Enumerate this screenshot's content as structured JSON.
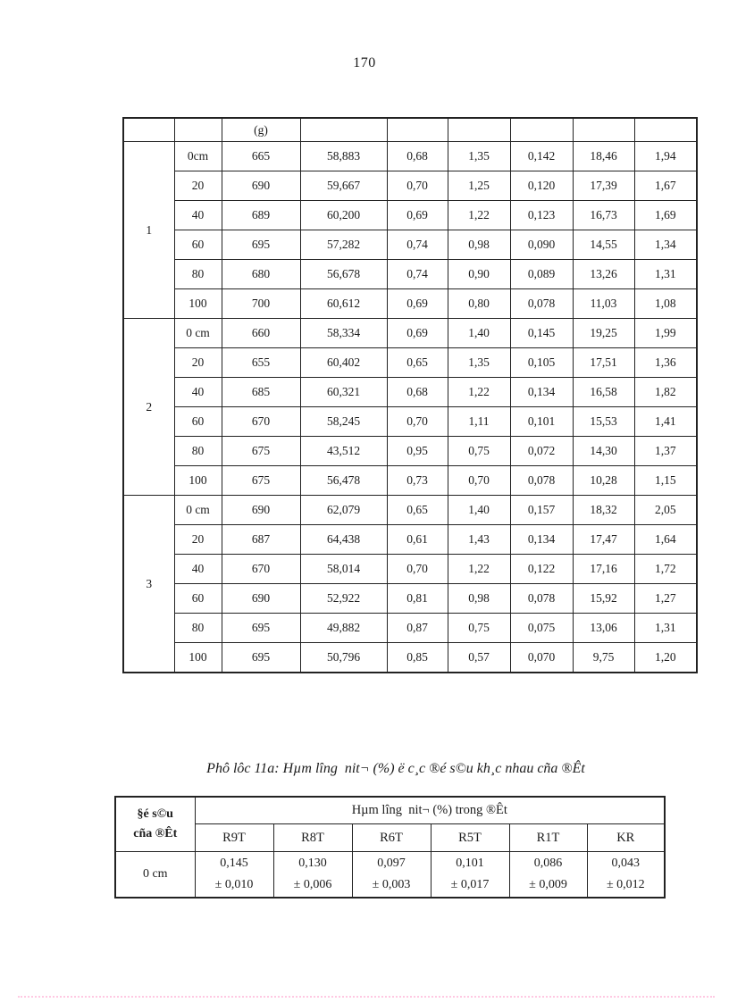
{
  "page": {
    "number": "170"
  },
  "table1": {
    "unit_header": "(g)",
    "groups": [
      {
        "label": "1",
        "rows": [
          [
            "0cm",
            "665",
            "58,883",
            "0,68",
            "1,35",
            "0,142",
            "18,46",
            "1,94"
          ],
          [
            "20",
            "690",
            "59,667",
            "0,70",
            "1,25",
            "0,120",
            "17,39",
            "1,67"
          ],
          [
            "40",
            "689",
            "60,200",
            "0,69",
            "1,22",
            "0,123",
            "16,73",
            "1,69"
          ],
          [
            "60",
            "695",
            "57,282",
            "0,74",
            "0,98",
            "0,090",
            "14,55",
            "1,34"
          ],
          [
            "80",
            "680",
            "56,678",
            "0,74",
            "0,90",
            "0,089",
            "13,26",
            "1,31"
          ],
          [
            "100",
            "700",
            "60,612",
            "0,69",
            "0,80",
            "0,078",
            "11,03",
            "1,08"
          ]
        ]
      },
      {
        "label": "2",
        "rows": [
          [
            "0 cm",
            "660",
            "58,334",
            "0,69",
            "1,40",
            "0,145",
            "19,25",
            "1,99"
          ],
          [
            "20",
            "655",
            "60,402",
            "0,65",
            "1,35",
            "0,105",
            "17,51",
            "1,36"
          ],
          [
            "40",
            "685",
            "60,321",
            "0,68",
            "1,22",
            "0,134",
            "16,58",
            "1,82"
          ],
          [
            "60",
            "670",
            "58,245",
            "0,70",
            "1,11",
            "0,101",
            "15,53",
            "1,41"
          ],
          [
            "80",
            "675",
            "43,512",
            "0,95",
            "0,75",
            "0,072",
            "14,30",
            "1,37"
          ],
          [
            "100",
            "675",
            "56,478",
            "0,73",
            "0,70",
            "0,078",
            "10,28",
            "1,15"
          ]
        ]
      },
      {
        "label": "3",
        "rows": [
          [
            "0 cm",
            "690",
            "62,079",
            "0,65",
            "1,40",
            "0,157",
            "18,32",
            "2,05"
          ],
          [
            "20",
            "687",
            "64,438",
            "0,61",
            "1,43",
            "0,134",
            "17,47",
            "1,64"
          ],
          [
            "40",
            "670",
            "58,014",
            "0,70",
            "1,22",
            "0,122",
            "17,16",
            "1,72"
          ],
          [
            "60",
            "690",
            "52,922",
            "0,81",
            "0,98",
            "0,078",
            "15,92",
            "1,27"
          ],
          [
            "80",
            "695",
            "49,882",
            "0,87",
            "0,75",
            "0,075",
            "13,06",
            "1,31"
          ],
          [
            "100",
            "695",
            "50,796",
            "0,85",
            "0,57",
            "0,070",
            "9,75",
            "1,20"
          ]
        ]
      }
    ]
  },
  "caption": "Phô lôc 11a: Hµm lîng  nit¬ (%) ë c¸c ®é s©u kh¸c nhau cña ®Êt",
  "table2": {
    "row_header_line1": "§é s©u",
    "row_header_line2": "cña ®Êt",
    "group_header": "Hµm lîng  nit¬ (%) trong ®Êt",
    "columns": [
      "R9T",
      "R8T",
      "R6T",
      "R5T",
      "R1T",
      "KR"
    ],
    "row_label": "0 cm",
    "values": [
      {
        "mean": "0,145",
        "err": "± 0,010"
      },
      {
        "mean": "0,130",
        "err": "± 0,006"
      },
      {
        "mean": "0,097",
        "err": "± 0,003"
      },
      {
        "mean": "0,101",
        "err": "± 0,017"
      },
      {
        "mean": "0,086",
        "err": "± 0,009"
      },
      {
        "mean": "0,043",
        "err": "± 0,012"
      }
    ]
  }
}
